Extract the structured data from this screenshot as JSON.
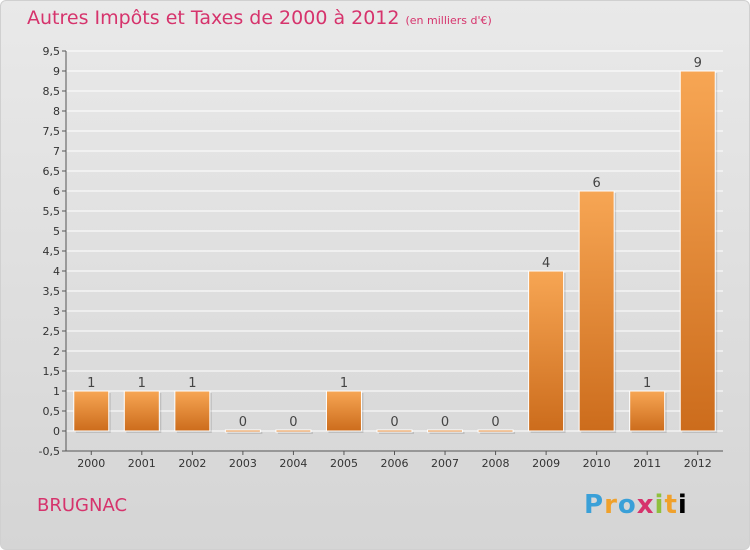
{
  "header": {
    "title": "Autres Impôts et Taxes de 2000 à 2012",
    "subtitle": "(en milliers d'€)"
  },
  "commune": "BRUGNAC",
  "logo": {
    "text": "Proxiti",
    "letters": [
      "P",
      "r",
      "o",
      "x",
      "i",
      "t",
      "i"
    ]
  },
  "colors": {
    "title": "#d6336c",
    "bar_light": "#f7a654",
    "bar_dark": "#cc6c1c",
    "grid": "#ffffff",
    "background_top": "#e9e9e9",
    "background_bottom": "#d5d5d5"
  },
  "chart_data": {
    "type": "bar",
    "title": "Autres Impôts et Taxes de 2000 à 2012",
    "subtitle": "(en milliers d'€)",
    "categories": [
      "2000",
      "2001",
      "2002",
      "2003",
      "2004",
      "2005",
      "2006",
      "2007",
      "2008",
      "2009",
      "2010",
      "2011",
      "2012"
    ],
    "values": [
      1,
      1,
      1,
      0,
      0,
      1,
      0,
      0,
      0,
      4,
      6,
      1,
      9
    ],
    "data_labels": [
      "1",
      "1",
      "1",
      "0",
      "0",
      "1",
      "0",
      "0",
      "0",
      "4",
      "6",
      "1",
      "9"
    ],
    "ylim": [
      -0.5,
      9.5
    ],
    "yticks": [
      -0.5,
      0,
      0.5,
      1,
      1.5,
      2,
      2.5,
      3,
      3.5,
      4,
      4.5,
      5,
      5.5,
      6,
      6.5,
      7,
      7.5,
      8,
      8.5,
      9,
      9.5
    ],
    "ytick_labels": [
      "-0,5",
      "0",
      "0,5",
      "1",
      "1,5",
      "2",
      "2,5",
      "3",
      "3,5",
      "4",
      "4,5",
      "5",
      "5,5",
      "6",
      "6,5",
      "7",
      "7,5",
      "8",
      "8,5",
      "9",
      "9,5"
    ],
    "grid": true
  }
}
